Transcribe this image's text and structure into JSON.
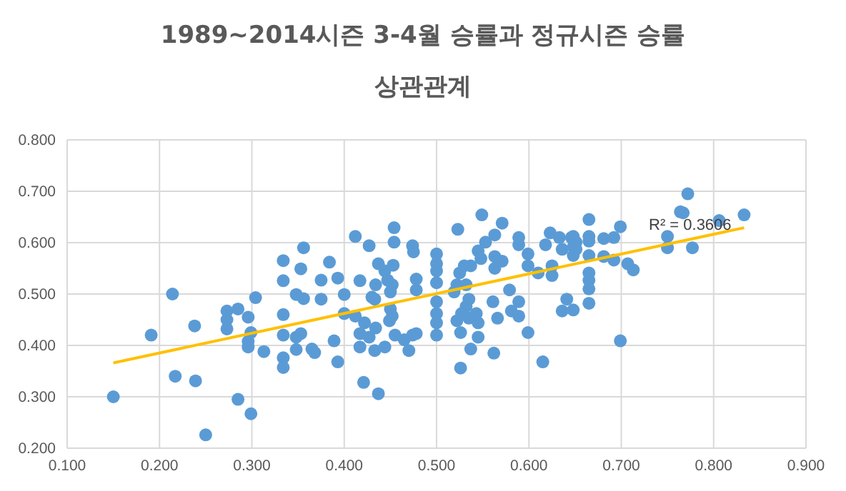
{
  "chart_data": {
    "type": "scatter",
    "title": "1989~2014시즌 3-4월 승률과 정규시즌 승률 상관관계",
    "xlim": [
      0.1,
      0.9
    ],
    "ylim": [
      0.2,
      0.8
    ],
    "xticks": [
      {
        "value": 0.1,
        "label": "0.100"
      },
      {
        "value": 0.2,
        "label": "0.200"
      },
      {
        "value": 0.3,
        "label": "0.300"
      },
      {
        "value": 0.4,
        "label": "0.400"
      },
      {
        "value": 0.5,
        "label": "0.500"
      },
      {
        "value": 0.6,
        "label": "0.600"
      },
      {
        "value": 0.7,
        "label": "0.700"
      },
      {
        "value": 0.8,
        "label": "0.800"
      },
      {
        "value": 0.9,
        "label": "0.900"
      }
    ],
    "yticks": [
      {
        "value": 0.2,
        "label": "0.200"
      },
      {
        "value": 0.3,
        "label": "0.300"
      },
      {
        "value": 0.4,
        "label": "0.400"
      },
      {
        "value": 0.5,
        "label": "0.500"
      },
      {
        "value": 0.6,
        "label": "0.600"
      },
      {
        "value": 0.7,
        "label": "0.700"
      },
      {
        "value": 0.8,
        "label": "0.800"
      }
    ],
    "grid": true,
    "legend": false,
    "marker": "circle",
    "annotations": [
      "R² = 0.3606"
    ],
    "series": [
      {
        "color": "#5b9bd5",
        "x": [
          0.15,
          0.191,
          0.214,
          0.217,
          0.238,
          0.239,
          0.25,
          0.285,
          0.299,
          0.273,
          0.273,
          0.273,
          0.285,
          0.296,
          0.299,
          0.296,
          0.296,
          0.304,
          0.313,
          0.334,
          0.334,
          0.334,
          0.334,
          0.334,
          0.334,
          0.348,
          0.356,
          0.353,
          0.356,
          0.348,
          0.353,
          0.348,
          0.365,
          0.368,
          0.375,
          0.375,
          0.384,
          0.393,
          0.389,
          0.393,
          0.412,
          0.427,
          0.417,
          0.4,
          0.4,
          0.412,
          0.417,
          0.417,
          0.421,
          0.437,
          0.437,
          0.454,
          0.454,
          0.453,
          0.422,
          0.427,
          0.434,
          0.433,
          0.444,
          0.444,
          0.447,
          0.452,
          0.434,
          0.43,
          0.433,
          0.45,
          0.45,
          0.452,
          0.449,
          0.455,
          0.465,
          0.47,
          0.474,
          0.478,
          0.478,
          0.478,
          0.474,
          0.475,
          0.5,
          0.5,
          0.5,
          0.5,
          0.5,
          0.5,
          0.5,
          0.5,
          0.523,
          0.549,
          0.522,
          0.519,
          0.525,
          0.53,
          0.537,
          0.532,
          0.535,
          0.532,
          0.527,
          0.522,
          0.535,
          0.543,
          0.545,
          0.545,
          0.537,
          0.526,
          0.526,
          0.562,
          0.545,
          0.553,
          0.563,
          0.571,
          0.548,
          0.563,
          0.563,
          0.571,
          0.579,
          0.561,
          0.566,
          0.581,
          0.589,
          0.589,
          0.599,
          0.615,
          0.589,
          0.589,
          0.599,
          0.599,
          0.61,
          0.623,
          0.618,
          0.625,
          0.625,
          0.633,
          0.641,
          0.636,
          0.636,
          0.646,
          0.648,
          0.648,
          0.648,
          0.648,
          0.651,
          0.651,
          0.665,
          0.665,
          0.665,
          0.665,
          0.665,
          0.665,
          0.665,
          0.665,
          0.681,
          0.681,
          0.692,
          0.692,
          0.699,
          0.699,
          0.707,
          0.713,
          0.75,
          0.75,
          0.764,
          0.767,
          0.772,
          0.777,
          0.806,
          0.833
        ],
        "values": [
          0.3,
          0.42,
          0.5,
          0.34,
          0.438,
          0.331,
          0.226,
          0.295,
          0.267,
          0.467,
          0.45,
          0.432,
          0.471,
          0.455,
          0.425,
          0.408,
          0.397,
          0.493,
          0.388,
          0.565,
          0.526,
          0.46,
          0.42,
          0.376,
          0.357,
          0.499,
          0.491,
          0.549,
          0.59,
          0.416,
          0.423,
          0.392,
          0.393,
          0.386,
          0.527,
          0.49,
          0.562,
          0.531,
          0.409,
          0.368,
          0.612,
          0.594,
          0.526,
          0.499,
          0.462,
          0.457,
          0.423,
          0.397,
          0.328,
          0.306,
          0.559,
          0.629,
          0.601,
          0.556,
          0.444,
          0.416,
          0.434,
          0.39,
          0.397,
          0.545,
          0.527,
          0.518,
          0.518,
          0.494,
          0.49,
          0.504,
          0.471,
          0.457,
          0.448,
          0.42,
          0.411,
          0.39,
          0.42,
          0.423,
          0.529,
          0.508,
          0.594,
          0.582,
          0.578,
          0.559,
          0.545,
          0.522,
          0.485,
          0.462,
          0.444,
          0.42,
          0.626,
          0.654,
          0.518,
          0.504,
          0.541,
          0.555,
          0.555,
          0.518,
          0.49,
          0.476,
          0.462,
          0.448,
          0.453,
          0.462,
          0.444,
          0.416,
          0.393,
          0.425,
          0.356,
          0.385,
          0.584,
          0.601,
          0.615,
          0.638,
          0.569,
          0.573,
          0.55,
          0.564,
          0.508,
          0.485,
          0.453,
          0.467,
          0.485,
          0.457,
          0.425,
          0.368,
          0.61,
          0.596,
          0.578,
          0.555,
          0.541,
          0.619,
          0.596,
          0.555,
          0.536,
          0.61,
          0.49,
          0.467,
          0.587,
          0.61,
          0.612,
          0.592,
          0.575,
          0.469,
          0.601,
          0.587,
          0.645,
          0.612,
          0.603,
          0.575,
          0.541,
          0.527,
          0.51,
          0.482,
          0.608,
          0.573,
          0.61,
          0.566,
          0.631,
          0.409,
          0.559,
          0.547,
          0.612,
          0.59,
          0.66,
          0.658,
          0.695,
          0.59,
          0.643,
          0.654
        ]
      },
      {
        "type": "line",
        "color": "#ffc000",
        "marker": "none",
        "line_style": "solid",
        "x": [
          0.15,
          0.833
        ],
        "values": [
          0.366,
          0.629
        ]
      }
    ]
  }
}
